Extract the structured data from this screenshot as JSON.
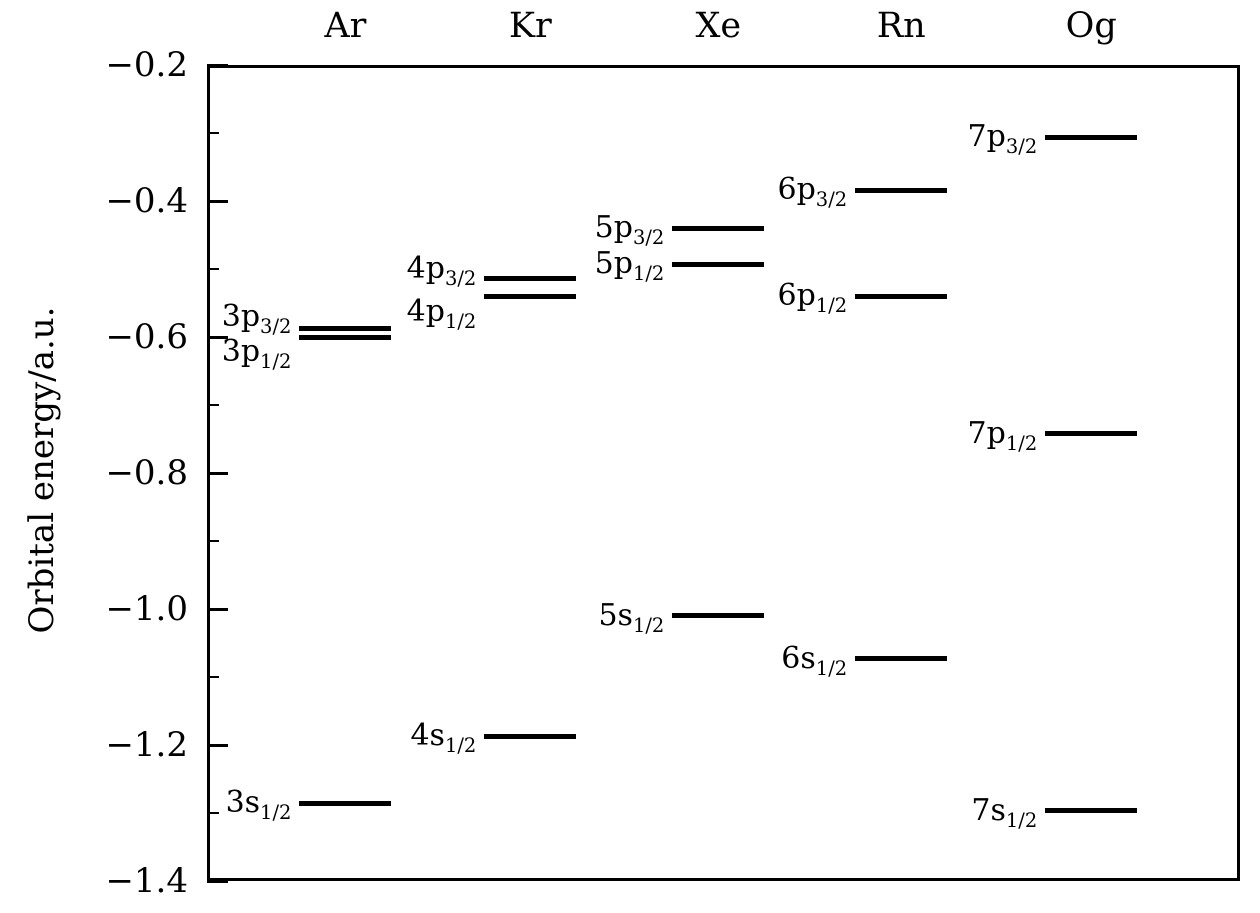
{
  "chart_data": {
    "type": "line",
    "subtype": "energy-level-diagram",
    "title": "",
    "ylabel": "Orbital energy/a.u.",
    "xlabel": "",
    "ylim": [
      -1.4,
      -0.2
    ],
    "grid": false,
    "legend": "none",
    "y_ticks": [
      {
        "value": -0.2,
        "label": "−0.2"
      },
      {
        "value": -0.4,
        "label": "−0.4"
      },
      {
        "value": -0.6,
        "label": "−0.6"
      },
      {
        "value": -0.8,
        "label": "−0.8"
      },
      {
        "value": -1.0,
        "label": "−1.0"
      },
      {
        "value": -1.2,
        "label": "−1.2"
      },
      {
        "value": -1.4,
        "label": "−1.4"
      }
    ],
    "y_minor_ticks": [
      -0.3,
      -0.5,
      -0.7,
      -0.9,
      -1.1,
      -1.3
    ],
    "columns": [
      {
        "element": "Ar",
        "x_frac": 0.134
      },
      {
        "element": "Kr",
        "x_frac": 0.313
      },
      {
        "element": "Xe",
        "x_frac": 0.495
      },
      {
        "element": "Rn",
        "x_frac": 0.672
      },
      {
        "element": "Og",
        "x_frac": 0.856
      }
    ],
    "levels": [
      {
        "element": "Ar",
        "label_main": "3p",
        "label_sub": "3/2",
        "energy": -0.588,
        "label_dy": -12
      },
      {
        "element": "Ar",
        "label_main": "3p",
        "label_sub": "1/2",
        "energy": -0.6,
        "label_dy": 15
      },
      {
        "element": "Ar",
        "label_main": "3s",
        "label_sub": "1/2",
        "energy": -1.286,
        "label_dy": 0
      },
      {
        "element": "Kr",
        "label_main": "4p",
        "label_sub": "3/2",
        "energy": -0.514,
        "label_dy": -10
      },
      {
        "element": "Kr",
        "label_main": "4p",
        "label_sub": "1/2",
        "energy": -0.541,
        "label_dy": 15
      },
      {
        "element": "Kr",
        "label_main": "4s",
        "label_sub": "1/2",
        "energy": -1.187,
        "label_dy": 0
      },
      {
        "element": "Xe",
        "label_main": "5p",
        "label_sub": "3/2",
        "energy": -0.44,
        "label_dy": 0
      },
      {
        "element": "Xe",
        "label_main": "5p",
        "label_sub": "1/2",
        "energy": -0.493,
        "label_dy": 0
      },
      {
        "element": "Xe",
        "label_main": "5s",
        "label_sub": "1/2",
        "energy": -1.01,
        "label_dy": 0
      },
      {
        "element": "Rn",
        "label_main": "6p",
        "label_sub": "3/2",
        "energy": -0.384,
        "label_dy": 0
      },
      {
        "element": "Rn",
        "label_main": "6p",
        "label_sub": "1/2",
        "energy": -0.54,
        "label_dy": 0
      },
      {
        "element": "Rn",
        "label_main": "6s",
        "label_sub": "1/2",
        "energy": -1.073,
        "label_dy": 0
      },
      {
        "element": "Og",
        "label_main": "7p",
        "label_sub": "3/2",
        "energy": -0.306,
        "label_dy": 0
      },
      {
        "element": "Og",
        "label_main": "7p",
        "label_sub": "1/2",
        "energy": -0.742,
        "label_dy": 0
      },
      {
        "element": "Og",
        "label_main": "7s",
        "label_sub": "1/2",
        "energy": -1.297,
        "label_dy": 0
      }
    ]
  }
}
